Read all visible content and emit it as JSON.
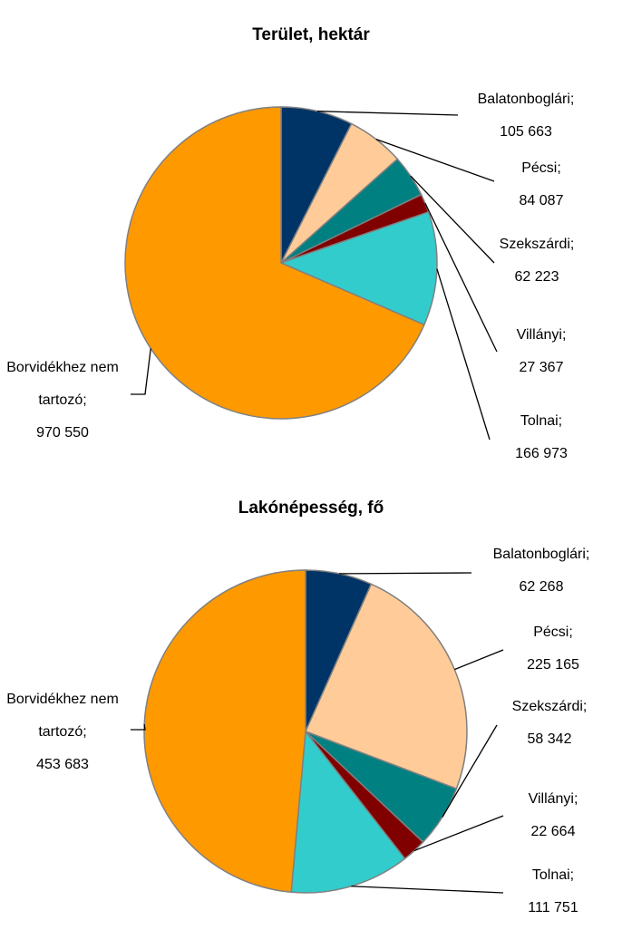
{
  "chart_data": [
    {
      "type": "pie",
      "title": "Terület, hektár",
      "categories": [
        "Balatonboglári;",
        "Pécsi;",
        "Szekszárdi;",
        "Villányi;",
        "Tolnai;",
        "Borvidékhez nem tartozó;"
      ],
      "values": [
        105663,
        84087,
        62223,
        27367,
        166973,
        970550
      ],
      "value_labels": [
        "105 663",
        "84 087",
        "62 223",
        "27 367",
        "166 973",
        "970 550"
      ],
      "colors": [
        "#003366",
        "#ffcc99",
        "#008080",
        "#800000",
        "#33cccc",
        "#ff9900"
      ]
    },
    {
      "type": "pie",
      "title": "Lakónépesség, fő",
      "categories": [
        "Balatonboglári;",
        "Pécsi;",
        "Szekszárdi;",
        "Villányi;",
        "Tolnai;",
        "Borvidékhez nem tartozó;"
      ],
      "values": [
        62268,
        225165,
        58342,
        22664,
        111751,
        453683
      ],
      "value_labels": [
        "62 268",
        "225 165",
        "58 342",
        "22 664",
        "111 751",
        "453 683"
      ],
      "colors": [
        "#003366",
        "#ffcc99",
        "#008080",
        "#800000",
        "#33cccc",
        "#ff9900"
      ]
    }
  ]
}
